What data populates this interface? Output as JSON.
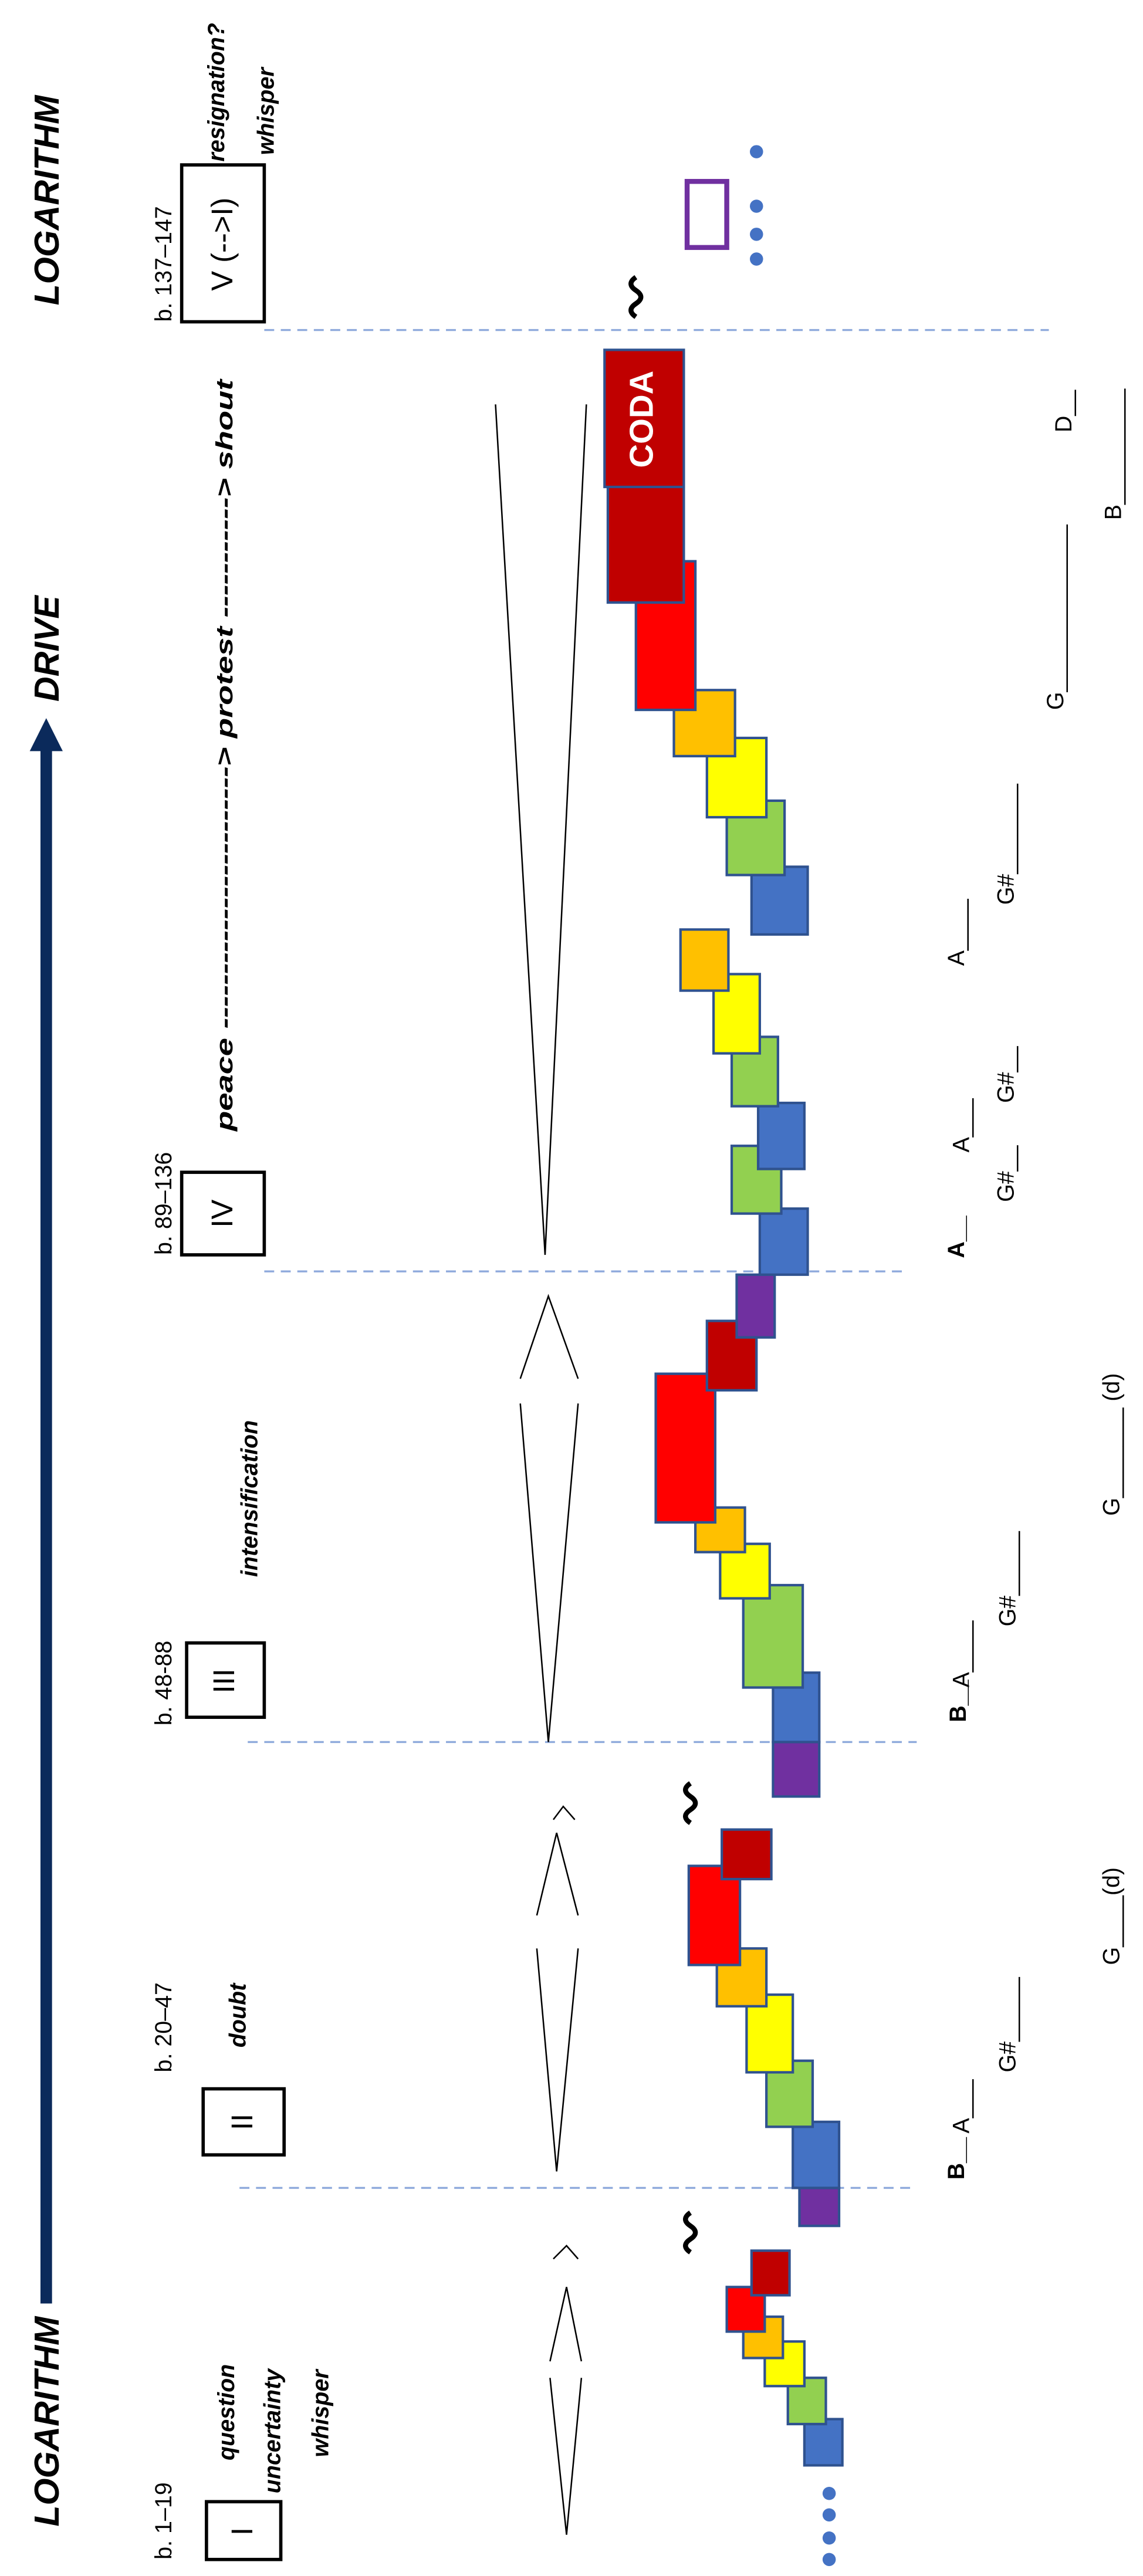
{
  "axis": {
    "left_label": "LOGARITHM",
    "middle_label": "DRIVE",
    "right_label": "LOGARITHM"
  },
  "sections": [
    {
      "bars": "b. 1–19",
      "numeral": "I",
      "mood": [
        "question",
        "uncertainty",
        "whisper"
      ]
    },
    {
      "bars": "b. 20–47",
      "numeral": "II",
      "mood": [
        "doubt"
      ],
      "notes": [
        "B__",
        "A___",
        "G#_____",
        "G____(d)"
      ]
    },
    {
      "bars": "b. 48-88",
      "numeral": "III",
      "mood": [
        "intensification"
      ],
      "notes": [
        "B__",
        "A____",
        "G#_____",
        "G_______ (d)"
      ]
    },
    {
      "bars": "b. 89–136",
      "numeral": "IV",
      "mood": [
        "peace ------------------------> protest -----------> shout"
      ],
      "notes": [
        "A__",
        "G#__",
        "A___",
        "G#__",
        "A____",
        "G#_______",
        "G_____________",
        "B_________",
        "D__"
      ],
      "coda": "CODA"
    },
    {
      "bars": "b. 137–147",
      "numeral": "V (-->I)",
      "mood": [
        "resignation?",
        "whisper"
      ]
    }
  ]
}
